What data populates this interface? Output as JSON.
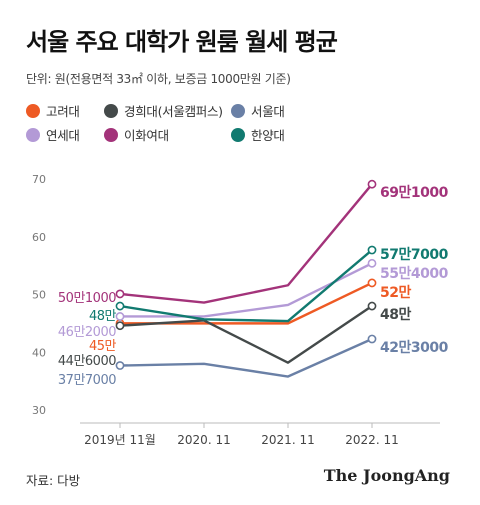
{
  "title": "서울 주요 대학가 원룸 월세 평균",
  "unit_note": "단위: 원(전용면적 33㎡ 이하, 보증금 1000만원 기준)",
  "source": "자료: 다방",
  "logo_text": "The JoongAng",
  "chart_data": {
    "type": "line",
    "title": "서울 주요 대학가 원룸 월세 평균",
    "xlabel": "",
    "ylabel": "",
    "categories": [
      "2019년 11월",
      "2020. 11",
      "2021. 11",
      "2022. 11"
    ],
    "yticks": [
      30,
      40,
      50,
      60,
      70
    ],
    "ylim": [
      30,
      72
    ],
    "grid": false,
    "legend_position": "top-left",
    "series": [
      {
        "name": "고려대",
        "color": "#ee5a24",
        "values": [
          45,
          45,
          45,
          52
        ],
        "start_label": "45만",
        "end_label": "52만"
      },
      {
        "name": "경희대(서울캠퍼스)",
        "color": "#444a4a",
        "values": [
          44.6,
          45.5,
          38.2,
          48
        ],
        "start_label": "44만6000",
        "end_label": "48만"
      },
      {
        "name": "서울대",
        "color": "#6a80a6",
        "values": [
          37.7,
          38,
          35.8,
          42.3
        ],
        "start_label": "37만7000",
        "end_label": "42만3000"
      },
      {
        "name": "연세대",
        "color": "#b39ad6",
        "values": [
          46.2,
          46.2,
          48.2,
          55.4
        ],
        "start_label": "46만2000",
        "end_label": "55만4000"
      },
      {
        "name": "이화여대",
        "color": "#a3337a",
        "values": [
          50.1,
          48.6,
          51.6,
          69.1
        ],
        "start_label": "50만1000",
        "end_label": "69만1000"
      },
      {
        "name": "한양대",
        "color": "#117a70",
        "values": [
          48,
          45.7,
          45.4,
          57.7
        ],
        "start_label": "48만",
        "end_label": "57만7000"
      }
    ]
  }
}
